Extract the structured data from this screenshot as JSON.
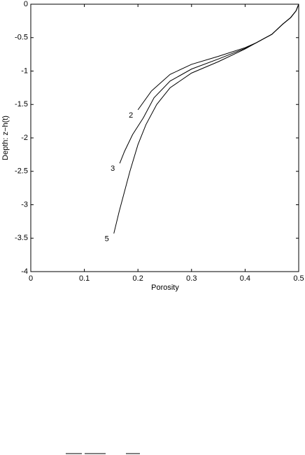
{
  "chart_data": {
    "type": "line",
    "xlabel": "Porosity",
    "ylabel": "Depth: z−h(t)",
    "xlim": [
      0,
      0.5
    ],
    "ylim": [
      -4,
      0
    ],
    "xticks": [
      0,
      0.1,
      0.2,
      0.3,
      0.4,
      0.5
    ],
    "yticks": [
      0,
      -0.5,
      -1,
      -1.5,
      -2,
      -2.5,
      -3,
      -3.5,
      -4
    ],
    "grid": false,
    "series": [
      {
        "name": "2",
        "color": "#000000",
        "x": [
          0.5,
          0.495,
          0.485,
          0.47,
          0.45,
          0.42,
          0.4,
          0.35,
          0.3,
          0.26,
          0.225,
          0.2
        ],
        "values": [
          0,
          -0.1,
          -0.2,
          -0.3,
          -0.45,
          -0.58,
          -0.65,
          -0.78,
          -0.9,
          -1.05,
          -1.3,
          -1.58
        ]
      },
      {
        "name": "3",
        "color": "#000000",
        "x": [
          0.5,
          0.495,
          0.485,
          0.47,
          0.45,
          0.42,
          0.4,
          0.35,
          0.3,
          0.26,
          0.23,
          0.21,
          0.19,
          0.175,
          0.166
        ],
        "values": [
          0,
          -0.1,
          -0.2,
          -0.3,
          -0.45,
          -0.58,
          -0.66,
          -0.82,
          -0.97,
          -1.15,
          -1.4,
          -1.7,
          -1.95,
          -2.2,
          -2.38
        ]
      },
      {
        "name": "5",
        "color": "#000000",
        "x": [
          0.5,
          0.495,
          0.485,
          0.47,
          0.45,
          0.42,
          0.4,
          0.35,
          0.3,
          0.26,
          0.235,
          0.215,
          0.2,
          0.185,
          0.175,
          0.165,
          0.155
        ],
        "values": [
          0,
          -0.1,
          -0.2,
          -0.3,
          -0.45,
          -0.58,
          -0.67,
          -0.86,
          -1.03,
          -1.25,
          -1.5,
          -1.8,
          -2.1,
          -2.5,
          -2.8,
          -3.1,
          -3.43
        ]
      }
    ]
  }
}
